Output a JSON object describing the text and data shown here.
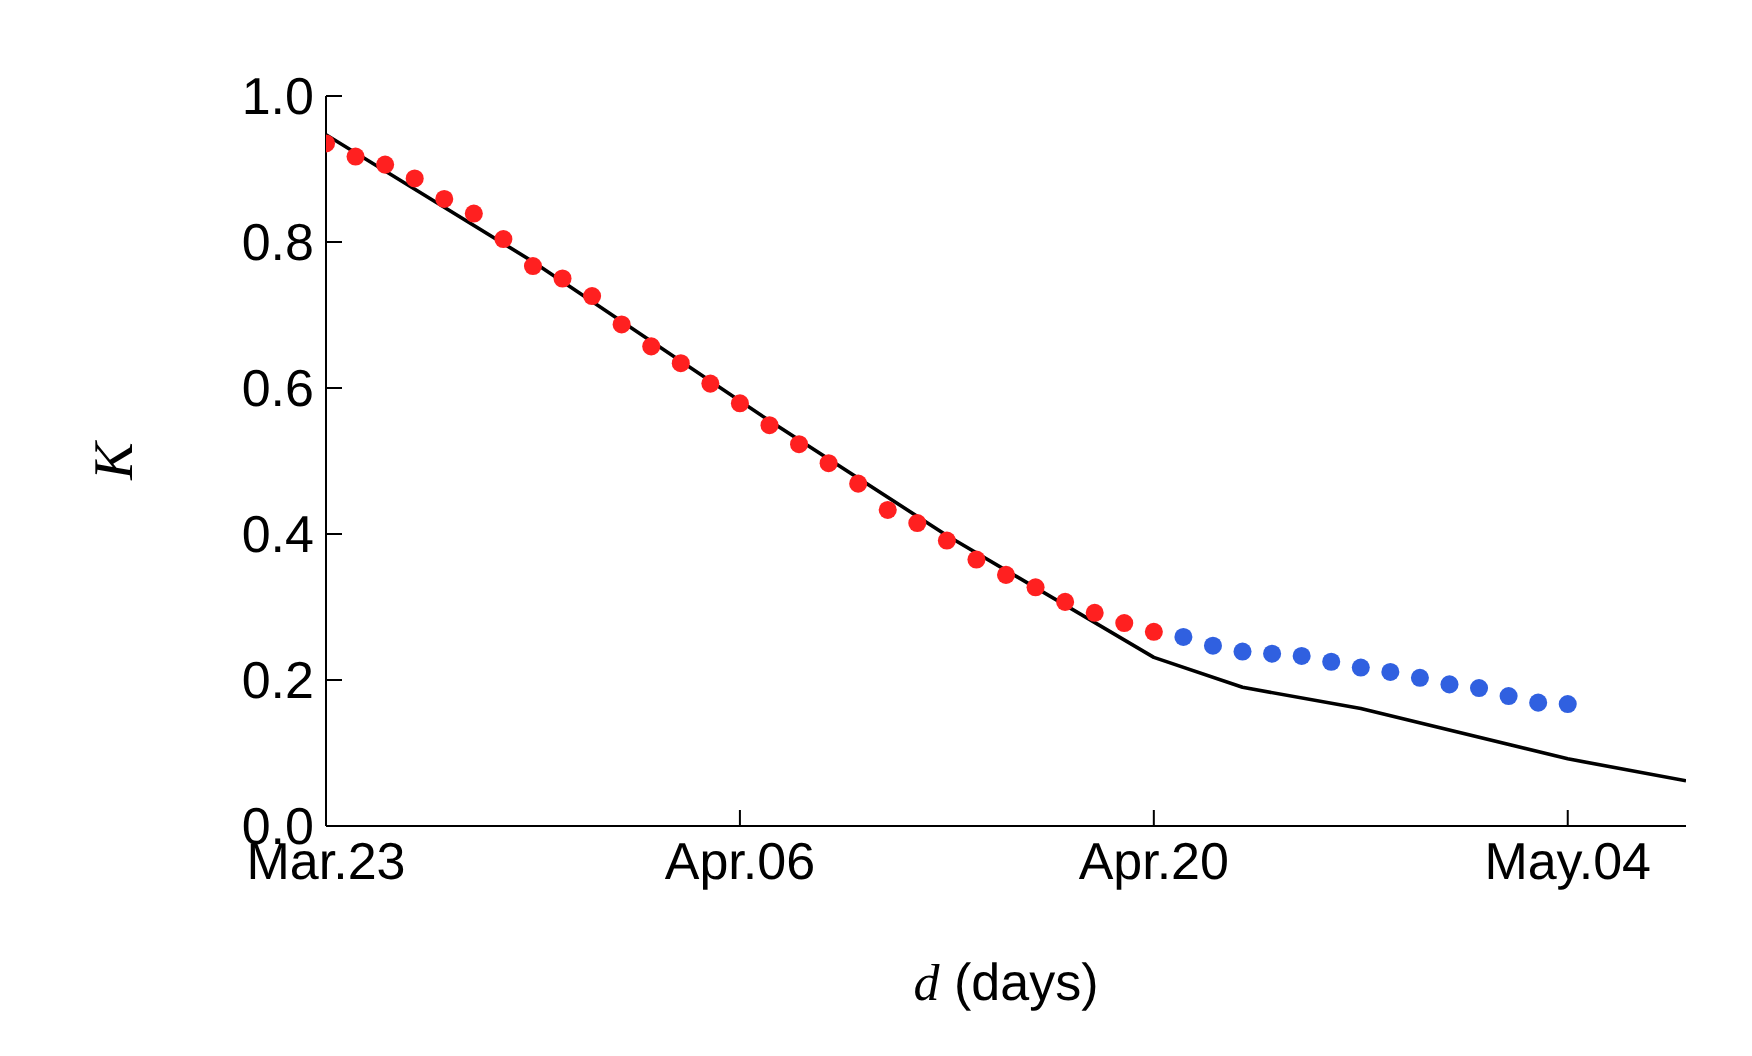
{
  "chart_data": {
    "type": "scatter",
    "xlabel": "d (days)",
    "ylabel": "K",
    "xlim": [
      "--03-23",
      "--05-08"
    ],
    "xticks": [
      {
        "value": "--03-23",
        "label": "Mar.23"
      },
      {
        "value": "--04-06",
        "label": "Apr.06"
      },
      {
        "value": "--04-20",
        "label": "Apr.20"
      },
      {
        "value": "--05-04",
        "label": "May.04"
      }
    ],
    "ylim": [
      0,
      1
    ],
    "yticks": [
      {
        "value": 0,
        "label": "0.0"
      },
      {
        "value": 0.2,
        "label": "0.2"
      },
      {
        "value": 0.4,
        "label": "0.4"
      },
      {
        "value": 0.6,
        "label": "0.6"
      },
      {
        "value": 0.8,
        "label": "0.8"
      },
      {
        "value": 1,
        "label": "1.0"
      }
    ],
    "marker": "circle",
    "series": [
      {
        "color": "#ff2020",
        "x": [
          "--03-23",
          "--03-24",
          "--03-25",
          "--03-26",
          "--03-27",
          "--03-28",
          "--03-29",
          "--03-30",
          "--03-31",
          "--04-01",
          "--04-02",
          "--04-03",
          "--04-04",
          "--04-05",
          "--04-06",
          "--04-07",
          "--04-08",
          "--04-09",
          "--04-10",
          "--04-11",
          "--04-12",
          "--04-13",
          "--04-14",
          "--04-15",
          "--04-16",
          "--04-17",
          "--04-18",
          "--04-19",
          "--04-20"
        ],
        "values": [
          0.935,
          0.917,
          0.906,
          0.887,
          0.859,
          0.839,
          0.804,
          0.767,
          0.75,
          0.726,
          0.687,
          0.657,
          0.634,
          0.606,
          0.579,
          0.549,
          0.523,
          0.497,
          0.469,
          0.433,
          0.415,
          0.391,
          0.365,
          0.344,
          0.327,
          0.307,
          0.292,
          0.278,
          0.266
        ]
      },
      {
        "color": "#3060e0",
        "x": [
          "--04-21",
          "--04-22",
          "--04-23",
          "--04-24",
          "--04-25",
          "--04-26",
          "--04-27",
          "--04-28",
          "--04-29",
          "--04-30",
          "--05-01",
          "--05-02",
          "--05-03",
          "--05-04"
        ],
        "values": [
          0.259,
          0.247,
          0.239,
          0.236,
          0.233,
          0.225,
          0.217,
          0.211,
          0.203,
          0.194,
          0.189,
          0.178,
          0.169,
          0.167
        ]
      },
      {
        "type": "line",
        "color": "#000000",
        "marker": "none",
        "line_style": "solid",
        "x": [
          "--03-23",
          "--03-30",
          "--04-07",
          "--04-13",
          "--04-20",
          "--04-23",
          "--04-27",
          "--05-04",
          "--05-08"
        ],
        "values": [
          0.947,
          0.773,
          0.555,
          0.398,
          0.231,
          0.19,
          0.161,
          0.092,
          0.062
        ]
      }
    ]
  }
}
